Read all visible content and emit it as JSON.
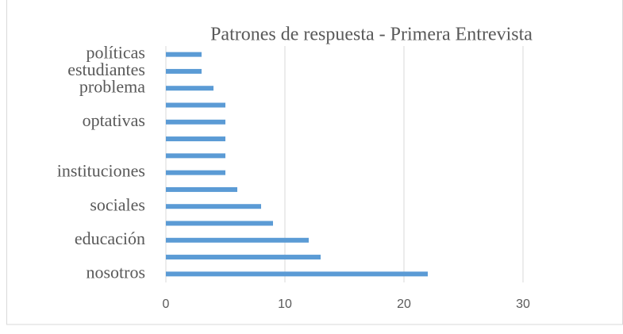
{
  "chart_data": {
    "type": "bar",
    "orientation": "horizontal",
    "title": "Patrones de respuesta - Primera Entrevista",
    "categories": [
      "nosotros",
      null,
      "educación",
      null,
      "sociales",
      null,
      "instituciones",
      null,
      null,
      "optativas",
      null,
      "problema",
      "estudiantes",
      "políticas"
    ],
    "values": [
      22,
      13,
      12,
      9,
      8,
      6,
      5,
      5,
      5,
      5,
      5,
      4,
      3,
      3
    ],
    "color": "#5b9bd5",
    "xlim": [
      0,
      35
    ],
    "xticks": [
      0,
      10,
      20,
      30
    ],
    "grid": true
  }
}
